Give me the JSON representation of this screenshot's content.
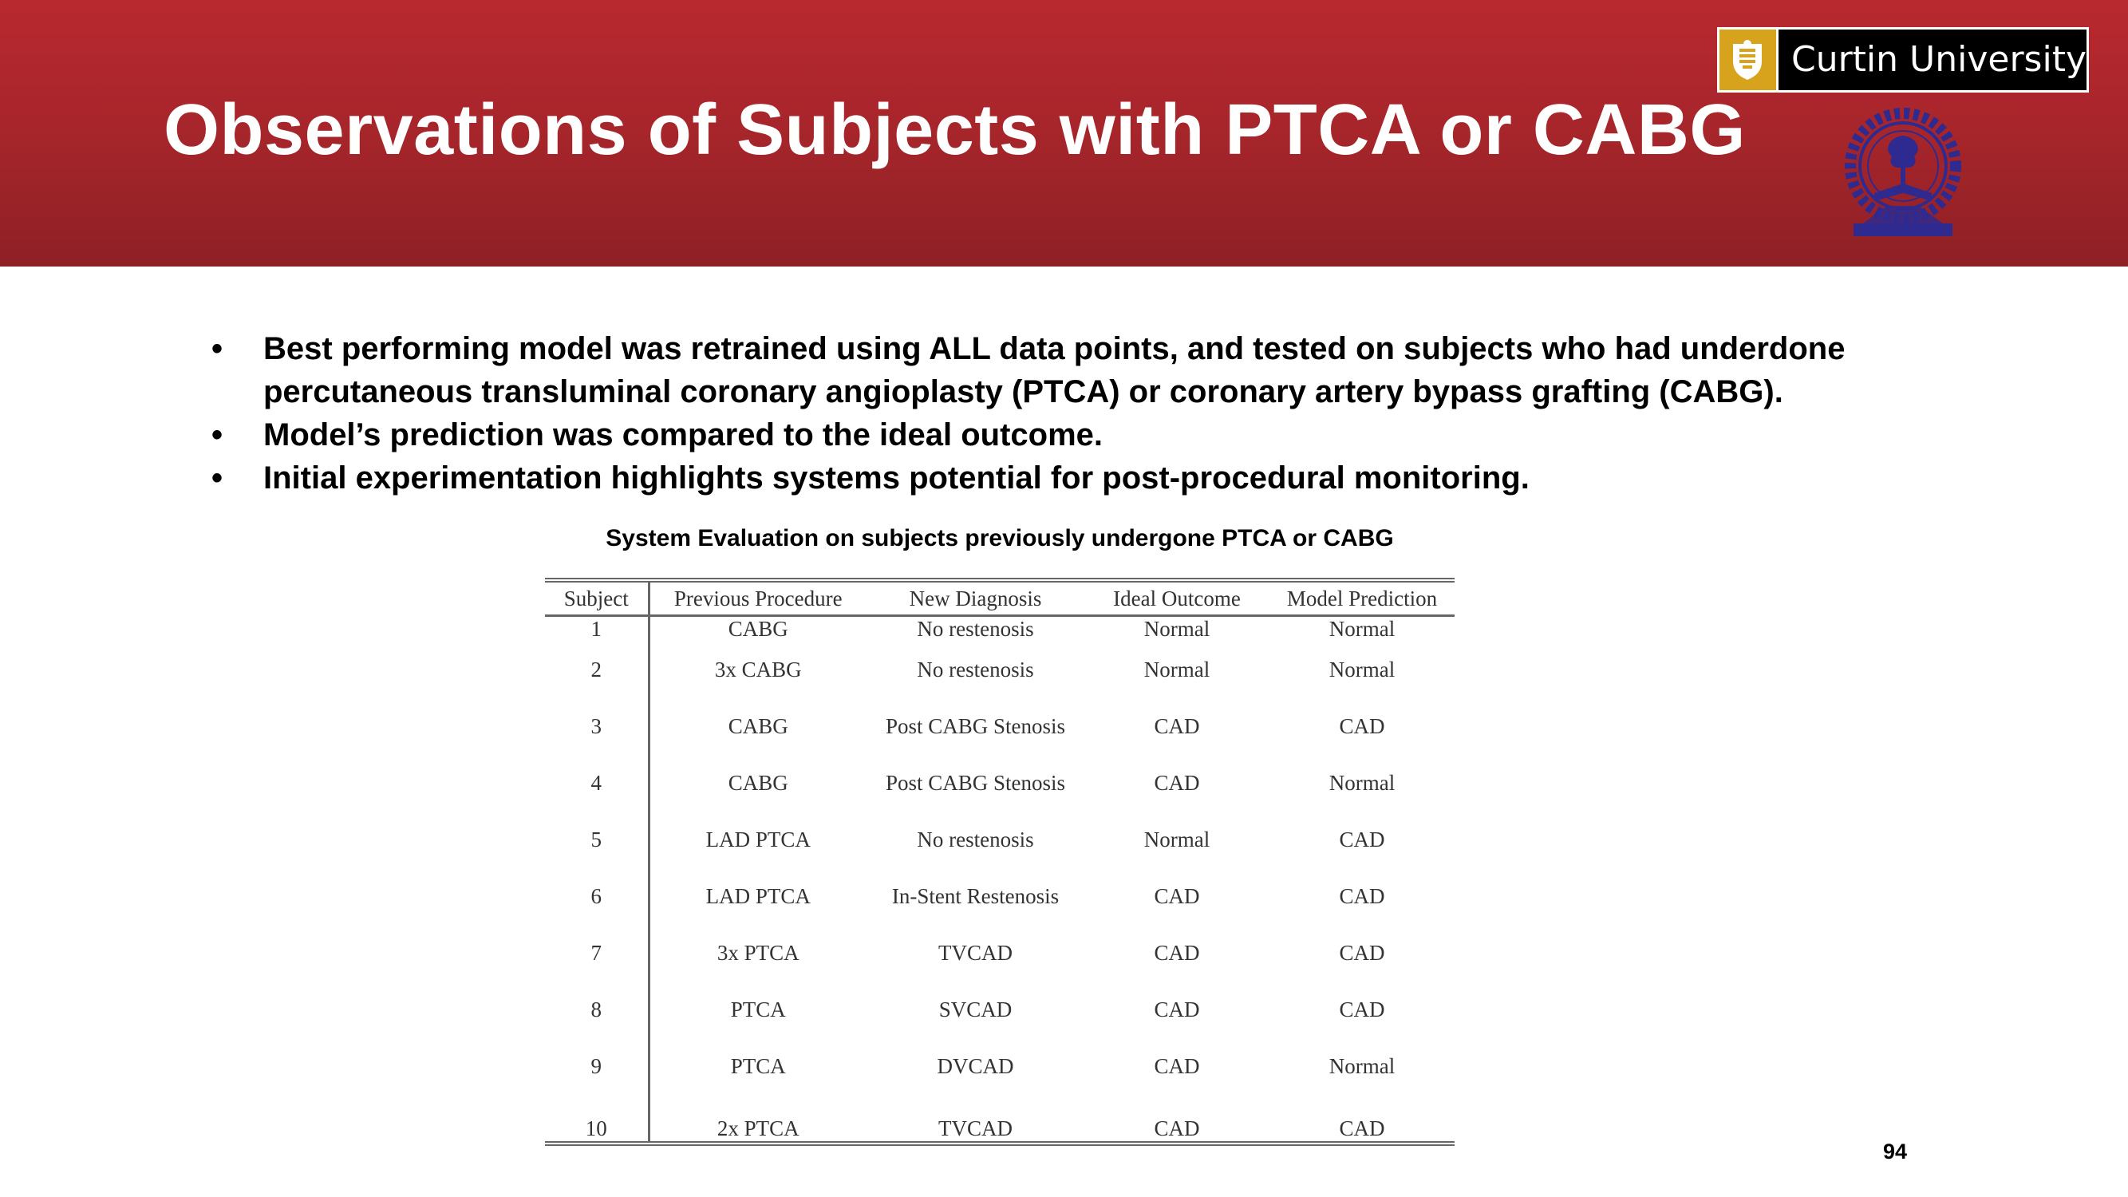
{
  "slide": {
    "title": "Observations of Subjects with PTCA or CABG",
    "page_number": "94"
  },
  "logos": {
    "curtin": {
      "name": "Curtin University",
      "icon": "curtin-crest-icon",
      "mark_color": "#d7a21c"
    },
    "institute_seal": {
      "icon": "iit-kharagpur-seal-icon",
      "color": "#2f2a8f"
    }
  },
  "colors": {
    "header": "#a8262b",
    "title_text": "#ffffff"
  },
  "bullets": [
    "Best performing model was retrained using ALL data points, and tested on subjects who had underdone percutaneous transluminal coronary angioplasty (PTCA) or coronary artery bypass grafting (CABG).",
    "Model’s prediction was compared to the ideal outcome.",
    "Initial experimentation highlights systems potential for post-procedural monitoring."
  ],
  "table": {
    "caption": "System Evaluation on subjects previously undergone PTCA or CABG",
    "headers": [
      "Subject",
      "Previous Procedure",
      "New Diagnosis",
      "Ideal Outcome",
      "Model Prediction"
    ],
    "rows": [
      [
        "1",
        "CABG",
        "No restenosis",
        "Normal",
        "Normal"
      ],
      [
        "2",
        "3x CABG",
        "No restenosis",
        "Normal",
        "Normal"
      ],
      [
        "3",
        "CABG",
        "Post CABG Stenosis",
        "CAD",
        "CAD"
      ],
      [
        "4",
        "CABG",
        "Post CABG Stenosis",
        "CAD",
        "Normal"
      ],
      [
        "5",
        "LAD PTCA",
        "No restenosis",
        "Normal",
        "CAD"
      ],
      [
        "6",
        "LAD PTCA",
        "In-Stent Restenosis",
        "CAD",
        "CAD"
      ],
      [
        "7",
        "3x PTCA",
        "TVCAD",
        "CAD",
        "CAD"
      ],
      [
        "8",
        "PTCA",
        "SVCAD",
        "CAD",
        "CAD"
      ],
      [
        "9",
        "PTCA",
        "DVCAD",
        "CAD",
        "Normal"
      ],
      [
        "10",
        "2x PTCA",
        "TVCAD",
        "CAD",
        "CAD"
      ]
    ]
  }
}
